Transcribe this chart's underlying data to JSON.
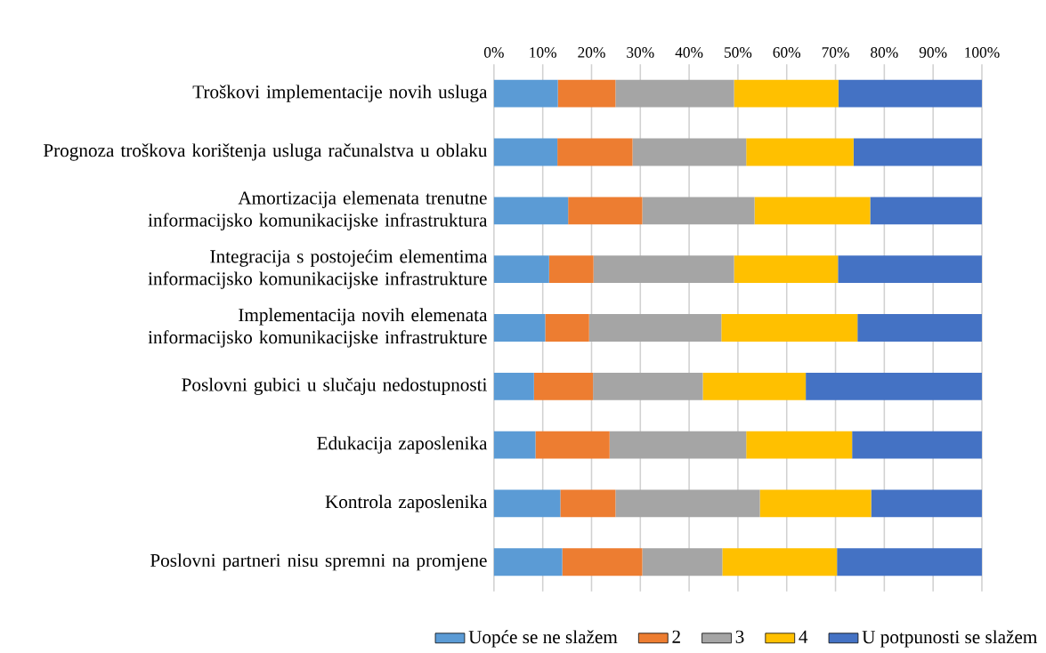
{
  "chart_data": {
    "type": "bar",
    "orientation": "horizontal",
    "stacked": true,
    "grid": "x",
    "legend": "bottom",
    "categories": [
      "Troškovi implementacije novih usluga",
      "Prognoza troškova korištenja usluga računalstva u oblaku",
      "Amortizacija elemenata trenutne informacijsko komunikacijske infrastruktura",
      "Integracija s postojećim elementima informacijsko komunikacijske infrastrukture",
      "Implementacija novih elemenata informacijsko komunikacijske infrastrukture",
      "Poslovni gubici u slučaju nedostupnosti",
      "Edukacija zaposlenika",
      "Kontrola zaposlenika",
      "Poslovni partneri nisu spremni na promjene"
    ],
    "series": [
      {
        "name": "Uopće se ne slažem",
        "color": "#5b9bd5",
        "values": [
          13.1,
          13.0,
          15.2,
          11.3,
          10.5,
          8.2,
          8.5,
          13.6,
          14.0
        ]
      },
      {
        "name": "2",
        "color": "#ed7d31",
        "values": [
          11.8,
          15.4,
          15.2,
          9.1,
          9.0,
          12.1,
          15.2,
          11.3,
          16.4
        ]
      },
      {
        "name": "3",
        "color": "#a5a5a5",
        "values": [
          24.3,
          23.3,
          23.0,
          28.8,
          27.1,
          22.5,
          28.0,
          29.6,
          16.4
        ]
      },
      {
        "name": "4",
        "color": "#ffc000",
        "values": [
          21.4,
          22.0,
          23.7,
          21.3,
          27.9,
          21.1,
          21.7,
          22.8,
          23.5
        ]
      },
      {
        "name": "U potpunosti se slažem",
        "color": "#4472c4",
        "values": [
          29.4,
          26.3,
          22.9,
          29.5,
          25.5,
          36.1,
          26.6,
          22.7,
          29.7
        ]
      }
    ],
    "xlim": [
      0,
      100
    ],
    "xticks": [
      {
        "value": 0,
        "label": "0%"
      },
      {
        "value": 10,
        "label": "10%"
      },
      {
        "value": 20,
        "label": "20%"
      },
      {
        "value": 30,
        "label": "30%"
      },
      {
        "value": 40,
        "label": "40%"
      },
      {
        "value": 50,
        "label": "50%"
      },
      {
        "value": 60,
        "label": "60%"
      },
      {
        "value": 70,
        "label": "70%"
      },
      {
        "value": 80,
        "label": "80%"
      },
      {
        "value": 90,
        "label": "90%"
      },
      {
        "value": 100,
        "label": "100%"
      }
    ]
  }
}
